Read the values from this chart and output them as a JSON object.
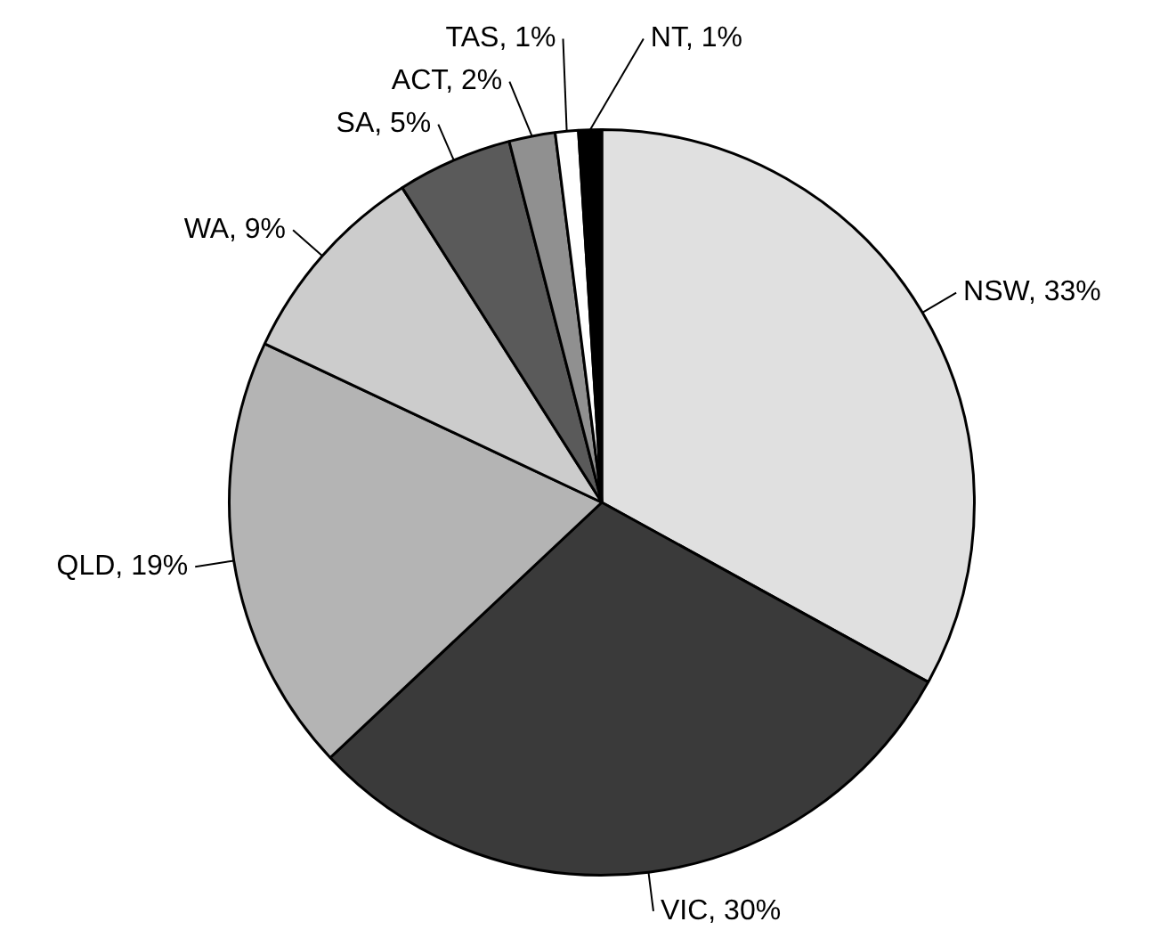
{
  "chart_data": {
    "type": "pie",
    "categories": [
      "NSW",
      "VIC",
      "QLD",
      "WA",
      "SA",
      "ACT",
      "TAS",
      "NT"
    ],
    "values": [
      33,
      30,
      19,
      9,
      5,
      2,
      1,
      1
    ],
    "value_labels": [
      "33%",
      "30%",
      "19%",
      "9%",
      "5%",
      "2%",
      "1%",
      "1%"
    ],
    "colors": [
      "#e0e0e0",
      "#3a3a3a",
      "#b4b4b4",
      "#cccccc",
      "#5a5a5a",
      "#909090",
      "#ffffff",
      "#000000"
    ],
    "legend": false
  }
}
